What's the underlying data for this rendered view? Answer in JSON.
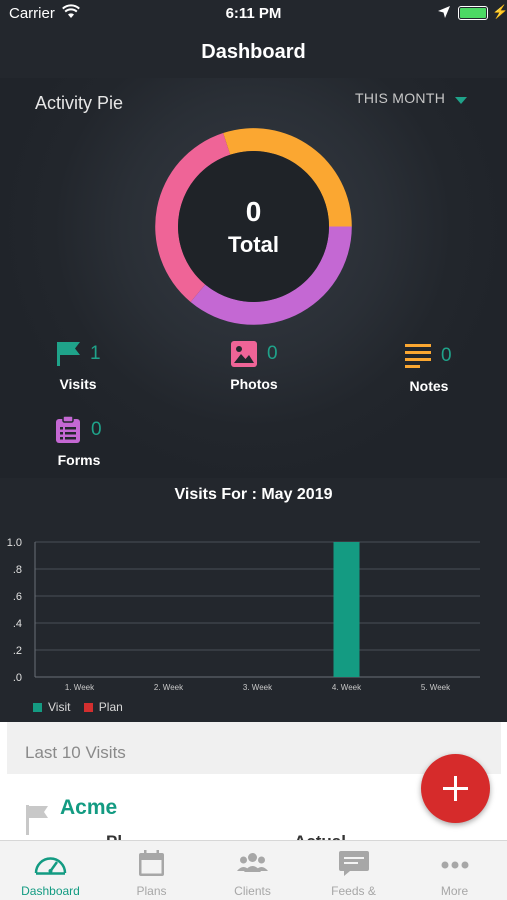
{
  "status_bar": {
    "carrier": "Carrier",
    "time": "6:11 PM"
  },
  "header": {
    "title": "Dashboard"
  },
  "activity_pie": {
    "title": "Activity Pie",
    "period": "THIS MONTH",
    "total_value": "0",
    "total_label": "Total",
    "segment_colors": [
      "#fba731",
      "#c468d3",
      "#ef6497"
    ],
    "stats": [
      {
        "label": "Visits",
        "count": "1",
        "icon": "flag-icon",
        "color": "#1fa38a"
      },
      {
        "label": "Photos",
        "count": "0",
        "icon": "photo-icon",
        "color": "#ef6497"
      },
      {
        "label": "Notes",
        "count": "0",
        "icon": "notes-icon",
        "color": "#fba731"
      },
      {
        "label": "Forms",
        "count": "0",
        "icon": "clipboard-icon",
        "color": "#c468d3"
      }
    ]
  },
  "chart_data": {
    "type": "bar",
    "title": "Visits For : May 2019",
    "categories": [
      "1. Week",
      "2. Week",
      "3. Week",
      "4. Week",
      "5. Week"
    ],
    "series": [
      {
        "name": "Visit",
        "color": "#149b82",
        "values": [
          0,
          0,
          0,
          1,
          0
        ]
      },
      {
        "name": "Plan",
        "color": "#d32f2f",
        "values": [
          0,
          0,
          0,
          0,
          0
        ]
      }
    ],
    "yticks": [
      "1.0",
      ".8",
      ".6",
      ".4",
      ".2",
      ".0"
    ],
    "ylim": [
      0,
      1
    ],
    "grid": true,
    "legend_position": "bottom-left"
  },
  "last_visits": {
    "header": "Last 10 Visits",
    "items": [
      {
        "name": "Acme",
        "col1": "Pl",
        "col2": "Actual"
      }
    ]
  },
  "tab_bar": {
    "active_color": "#139b82",
    "tabs": [
      {
        "label": "Dashboard",
        "icon": "speedometer-icon",
        "active": true
      },
      {
        "label": "Plans",
        "icon": "calendar-icon"
      },
      {
        "label": "Clients",
        "icon": "group-icon"
      },
      {
        "label": "Feeds & Messages",
        "icon": "chat-icon"
      },
      {
        "label": "More",
        "icon": "more-icon"
      }
    ]
  }
}
